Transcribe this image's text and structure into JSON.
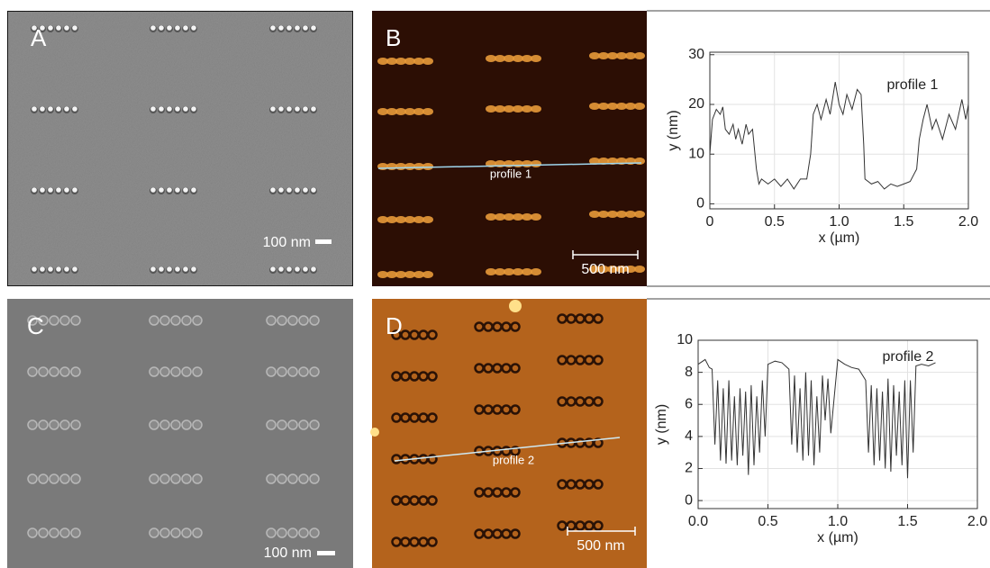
{
  "panels": [
    {
      "label": "A",
      "scale_bar": "100 nm"
    },
    {
      "label": "B",
      "scale_bar": "500 nm",
      "line_label": "profile 1"
    },
    {
      "label": "C",
      "scale_bar": "100 nm"
    },
    {
      "label": "D",
      "scale_bar": "500 nm",
      "line_label": "profile 2"
    }
  ],
  "chart_data": [
    {
      "type": "line",
      "annotation": "profile 1",
      "xlabel": "x (µm)",
      "ylabel": "y (nm)",
      "color": "#333333",
      "grid": true,
      "xlim": [
        0,
        2.0
      ],
      "ylim": [
        -1,
        30.5
      ],
      "xticks": [
        0,
        0.5,
        {
          "value": 1.0,
          "label": "1.0"
        },
        1.5,
        {
          "value": 2.0,
          "label": "2.0"
        }
      ],
      "yticks": [
        0,
        10,
        20,
        30
      ],
      "x": [
        0,
        0.02,
        0.05,
        0.08,
        0.1,
        0.12,
        0.15,
        0.18,
        0.2,
        0.22,
        0.25,
        0.28,
        0.3,
        0.33,
        0.36,
        0.38,
        0.4,
        0.45,
        0.5,
        0.55,
        0.6,
        0.65,
        0.7,
        0.75,
        0.78,
        0.8,
        0.83,
        0.86,
        0.9,
        0.93,
        0.97,
        1.0,
        1.03,
        1.06,
        1.1,
        1.14,
        1.17,
        1.19,
        1.2,
        1.25,
        1.3,
        1.35,
        1.4,
        1.45,
        1.5,
        1.55,
        1.6,
        1.62,
        1.65,
        1.68,
        1.72,
        1.75,
        1.8,
        1.85,
        1.9,
        1.95,
        1.98,
        2.0
      ],
      "values": [
        10,
        17,
        19,
        18,
        19.5,
        15,
        14,
        16,
        13,
        15,
        12,
        16,
        14,
        15,
        7,
        4,
        5,
        4,
        5,
        3.5,
        5,
        3,
        5,
        5,
        10,
        18,
        20,
        17,
        21,
        18,
        24.5,
        20,
        18,
        22,
        19,
        23,
        22,
        12,
        5,
        4,
        4.5,
        3,
        4,
        3.5,
        4,
        4.5,
        7,
        13,
        17,
        20,
        15,
        17,
        13,
        18,
        15,
        21,
        17,
        20
      ]
    },
    {
      "type": "line",
      "annotation": "profile 2",
      "xlabel": "x (µm)",
      "ylabel": "y (nm)",
      "color": "#333333",
      "grid": true,
      "xlim": [
        0,
        2.0
      ],
      "ylim": [
        -0.5,
        10
      ],
      "xticks": [
        {
          "value": 0,
          "label": "0.0"
        },
        0.5,
        {
          "value": 1.0,
          "label": "1.0"
        },
        1.5,
        {
          "value": 2.0,
          "label": "2.0"
        }
      ],
      "yticks": [
        0,
        2,
        4,
        6,
        8,
        10
      ],
      "x": [
        0,
        0.05,
        0.08,
        0.1,
        0.12,
        0.14,
        0.16,
        0.18,
        0.2,
        0.22,
        0.24,
        0.26,
        0.28,
        0.3,
        0.32,
        0.34,
        0.36,
        0.38,
        0.4,
        0.42,
        0.44,
        0.46,
        0.48,
        0.5,
        0.55,
        0.6,
        0.65,
        0.67,
        0.69,
        0.71,
        0.73,
        0.75,
        0.77,
        0.79,
        0.81,
        0.83,
        0.85,
        0.87,
        0.89,
        0.91,
        0.93,
        0.95,
        1.0,
        1.05,
        1.1,
        1.15,
        1.2,
        1.22,
        1.24,
        1.26,
        1.28,
        1.3,
        1.32,
        1.34,
        1.36,
        1.38,
        1.4,
        1.42,
        1.44,
        1.46,
        1.48,
        1.5,
        1.52,
        1.54,
        1.56,
        1.6,
        1.65,
        1.7
      ],
      "values": [
        8.5,
        8.8,
        8.3,
        8.2,
        3.5,
        7.5,
        2.5,
        7,
        2.3,
        7.5,
        2.5,
        6.5,
        2.2,
        7,
        2.8,
        6.8,
        1.6,
        7.2,
        2.2,
        6.5,
        3,
        7.5,
        4,
        8.5,
        8.7,
        8.6,
        8.2,
        3.5,
        7.8,
        3,
        7,
        2.5,
        8,
        2.8,
        7.5,
        2.2,
        6.5,
        3,
        7.8,
        5,
        7.6,
        4.2,
        8.8,
        8.5,
        8.3,
        8.2,
        7.5,
        3,
        7.2,
        2.2,
        7,
        2.5,
        6.8,
        2,
        7.6,
        1.8,
        7.2,
        2.8,
        6.8,
        2.2,
        7.5,
        1.4,
        7.5,
        3,
        8.4,
        8.5,
        8.4,
        8.6
      ]
    }
  ]
}
